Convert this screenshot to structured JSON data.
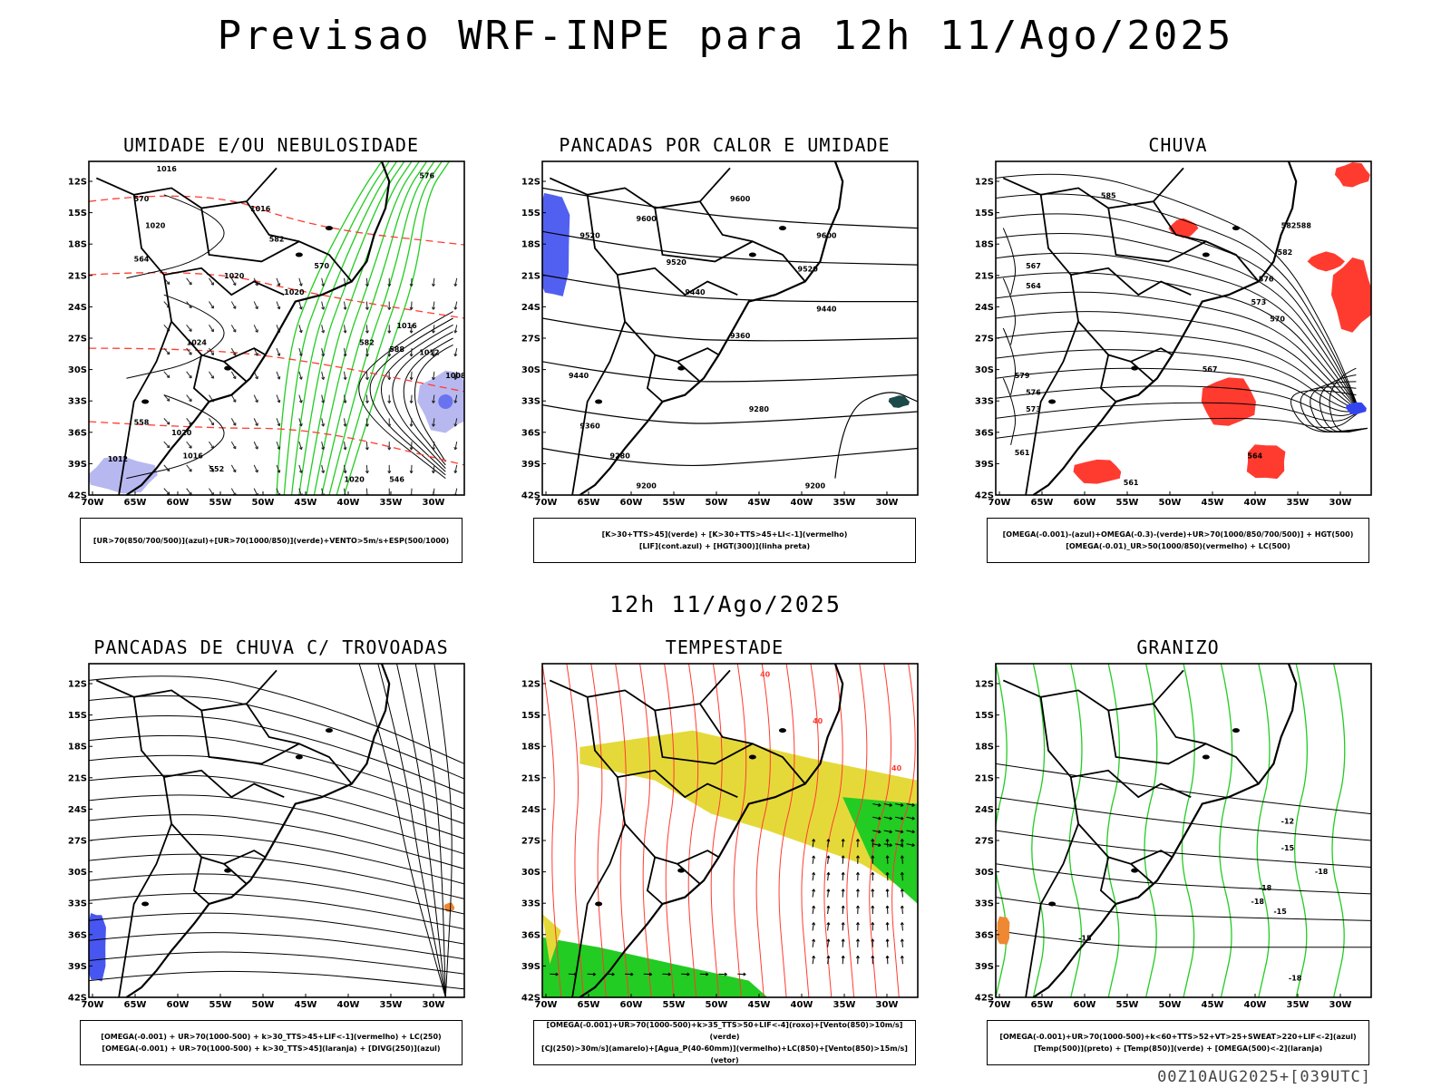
{
  "header": {
    "title": "Previsao WRF-INPE  para 12h 11/Ago/2025"
  },
  "middle": {
    "title": "12h 11/Ago/2025"
  },
  "footer": {
    "run": "00Z10AUG2025+[039UTC]"
  },
  "axes": {
    "lat_labels": [
      "12S",
      "15S",
      "18S",
      "21S",
      "24S",
      "27S",
      "30S",
      "33S",
      "36S",
      "39S",
      "42S"
    ],
    "lon_labels": [
      "70W",
      "65W",
      "60W",
      "55W",
      "50W",
      "45W",
      "40W",
      "35W",
      "30W"
    ]
  },
  "panels": [
    {
      "title": "UMIDADE E/OU NEBULOSIDADE",
      "legend": [
        "[UR>70(850/700/500)](azul)+[UR>70(1000/850)](verde)+VENTO>5m/s+ESP(500/1000)"
      ],
      "contour_labels": [
        "1016",
        "1016",
        "1020",
        "1020",
        "1024",
        "1020",
        "1016",
        "1012",
        "1008",
        "1020",
        "1016",
        "1012",
        "1020",
        "570",
        "576",
        "570",
        "582",
        "564",
        "588",
        "558",
        "552",
        "546",
        "582"
      ]
    },
    {
      "title": "PANCADAS POR CALOR E UMIDADE",
      "legend": [
        "[K>30+TTS>45](verde) + [K>30+TTS>45+LI<-1](vermelho)",
        "[LIF](cont.azul) + [HGT(300)](linha preta)"
      ],
      "contour_labels": [
        "9600",
        "9600",
        "9520",
        "9600",
        "9520",
        "9520",
        "9440",
        "9440",
        "9440",
        "9360",
        "9360",
        "9280",
        "9280",
        "9200",
        "9200"
      ]
    },
    {
      "title": "CHUVA",
      "legend": [
        "[OMEGA(-0.001)-(azul)+OMEGA(-0.3)-(verde)+UR>70(1000/850/700/500)] + HGT(500)",
        "[OMEGA(-0.01)_UR>50(1000/850)(vermelho) + LC(500)"
      ],
      "contour_labels": [
        "588",
        "582",
        "576",
        "573",
        "570",
        "567",
        "564",
        "561",
        "579",
        "576",
        "573",
        "567",
        "564",
        "561",
        "582",
        "585"
      ]
    },
    {
      "title": "PANCADAS DE CHUVA C/ TROVOADAS",
      "legend": [
        "[OMEGA(-0.001) + UR>70(1000-500) + k>30_TTS>45+LIF<-1](vermelho) + LC(250)",
        "[OMEGA(-0.001) + UR>70(1000-500) + k>30_TTS>45](laranja) + [DIVG(250)](azul)"
      ]
    },
    {
      "title": "TEMPESTADE",
      "legend": [
        "[OMEGA(-0.001)+UR>70(1000-500)+k>35_TTS>50+LIF<-4](roxo)+[Vento(850)>10m/s](verde)",
        "[CJ(250)>30m/s](amarelo)+[Agua_P(40-60mm)](vermelho)+LC(850)+[Vento(850)>15m/s](vetor)"
      ],
      "contour_labels": [
        "40",
        "40",
        "40"
      ]
    },
    {
      "title": "GRANIZO",
      "legend": [
        "[OMEGA(-0.001)+UR>70(1000-500)+k<60+TTS>52+VT>25+SWEAT>220+LIF<-2](azul)",
        "[Temp(500)](preto) + [Temp(850)](verde) + [OMEGA(500)<-2](laranja)"
      ],
      "contour_labels": [
        "-12",
        "-15",
        "-18",
        "-18",
        "-15",
        "-18",
        "-15",
        "-18"
      ]
    }
  ],
  "colors": {
    "green": "#22cc22",
    "red": "#ff3b30",
    "blue": "#3344ee",
    "lavender": "#b8b8f0",
    "yellow": "#e5d93a",
    "orange": "#ee8833",
    "dark": "#000000"
  }
}
